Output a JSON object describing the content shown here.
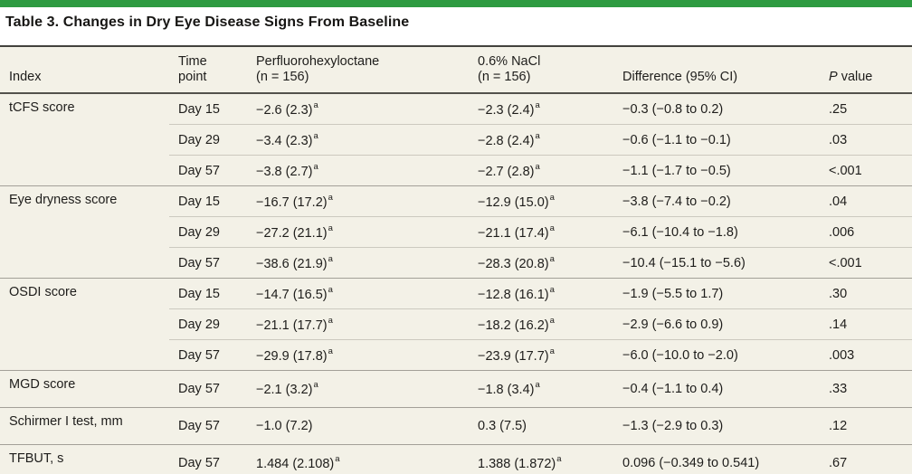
{
  "accent_color": "#2e9b41",
  "table": {
    "title": "Table 3. Changes in Dry Eye Disease Signs From Baseline",
    "columns": {
      "index": "Index",
      "time": [
        "Time",
        "point"
      ],
      "pfho": [
        "Perfluorohexyloctane",
        "(n = 156)"
      ],
      "nacl": [
        "0.6% NaCl",
        "(n = 156)"
      ],
      "diff": "Difference (95% CI)",
      "p_italic": "P",
      "p_rest": " value"
    },
    "footnote_marker": "a",
    "groups": [
      {
        "index": "tCFS score",
        "rows": [
          {
            "time": "Day 15",
            "pfho": "−2.6 (2.3)",
            "pfho_sup": "a",
            "nacl": "−2.3 (2.4)",
            "nacl_sup": "a",
            "diff": "−0.3 (−0.8 to 0.2)",
            "p": ".25"
          },
          {
            "time": "Day 29",
            "pfho": "−3.4 (2.3)",
            "pfho_sup": "a",
            "nacl": "−2.8 (2.4)",
            "nacl_sup": "a",
            "diff": "−0.6 (−1.1 to −0.1)",
            "p": ".03"
          },
          {
            "time": "Day 57",
            "pfho": "−3.8 (2.7)",
            "pfho_sup": "a",
            "nacl": "−2.7 (2.8)",
            "nacl_sup": "a",
            "diff": "−1.1 (−1.7 to −0.5)",
            "p": "<.001"
          }
        ]
      },
      {
        "index": "Eye dryness score",
        "rows": [
          {
            "time": "Day 15",
            "pfho": "−16.7 (17.2)",
            "pfho_sup": "a",
            "nacl": "−12.9 (15.0)",
            "nacl_sup": "a",
            "diff": "−3.8 (−7.4 to −0.2)",
            "p": ".04"
          },
          {
            "time": "Day 29",
            "pfho": "−27.2 (21.1)",
            "pfho_sup": "a",
            "nacl": "−21.1 (17.4)",
            "nacl_sup": "a",
            "diff": "−6.1 (−10.4 to −1.8)",
            "p": ".006"
          },
          {
            "time": "Day 57",
            "pfho": "−38.6 (21.9)",
            "pfho_sup": "a",
            "nacl": "−28.3 (20.8)",
            "nacl_sup": "a",
            "diff": "−10.4 (−15.1 to −5.6)",
            "p": "<.001"
          }
        ]
      },
      {
        "index": "OSDI score",
        "rows": [
          {
            "time": "Day 15",
            "pfho": "−14.7 (16.5)",
            "pfho_sup": "a",
            "nacl": "−12.8 (16.1)",
            "nacl_sup": "a",
            "diff": "−1.9 (−5.5 to 1.7)",
            "p": ".30"
          },
          {
            "time": "Day 29",
            "pfho": "−21.1 (17.7)",
            "pfho_sup": "a",
            "nacl": "−18.2 (16.2)",
            "nacl_sup": "a",
            "diff": "−2.9 (−6.6 to 0.9)",
            "p": ".14"
          },
          {
            "time": "Day 57",
            "pfho": "−29.9 (17.8)",
            "pfho_sup": "a",
            "nacl": "−23.9 (17.7)",
            "nacl_sup": "a",
            "diff": "−6.0 (−10.0 to −2.0)",
            "p": ".003"
          }
        ]
      },
      {
        "index": "MGD score",
        "rows": [
          {
            "time": "Day 57",
            "pfho": "−2.1 (3.2)",
            "pfho_sup": "a",
            "nacl": "−1.8 (3.4)",
            "nacl_sup": "a",
            "diff": "−0.4 (−1.1 to 0.4)",
            "p": ".33"
          }
        ]
      },
      {
        "index": "Schirmer I test, mm",
        "rows": [
          {
            "time": "Day 57",
            "pfho": "−1.0 (7.2)",
            "nacl": "0.3 (7.5)",
            "diff": "−1.3 (−2.9 to 0.3)",
            "p": ".12"
          }
        ]
      },
      {
        "index": "TFBUT, s",
        "rows": [
          {
            "time": "Day 57",
            "pfho": "1.484 (2.108)",
            "pfho_sup": "a",
            "nacl": "1.388 (1.872)",
            "nacl_sup": "a",
            "diff": "0.096 (−0.349 to 0.541)",
            "p": ".67"
          }
        ]
      }
    ]
  }
}
